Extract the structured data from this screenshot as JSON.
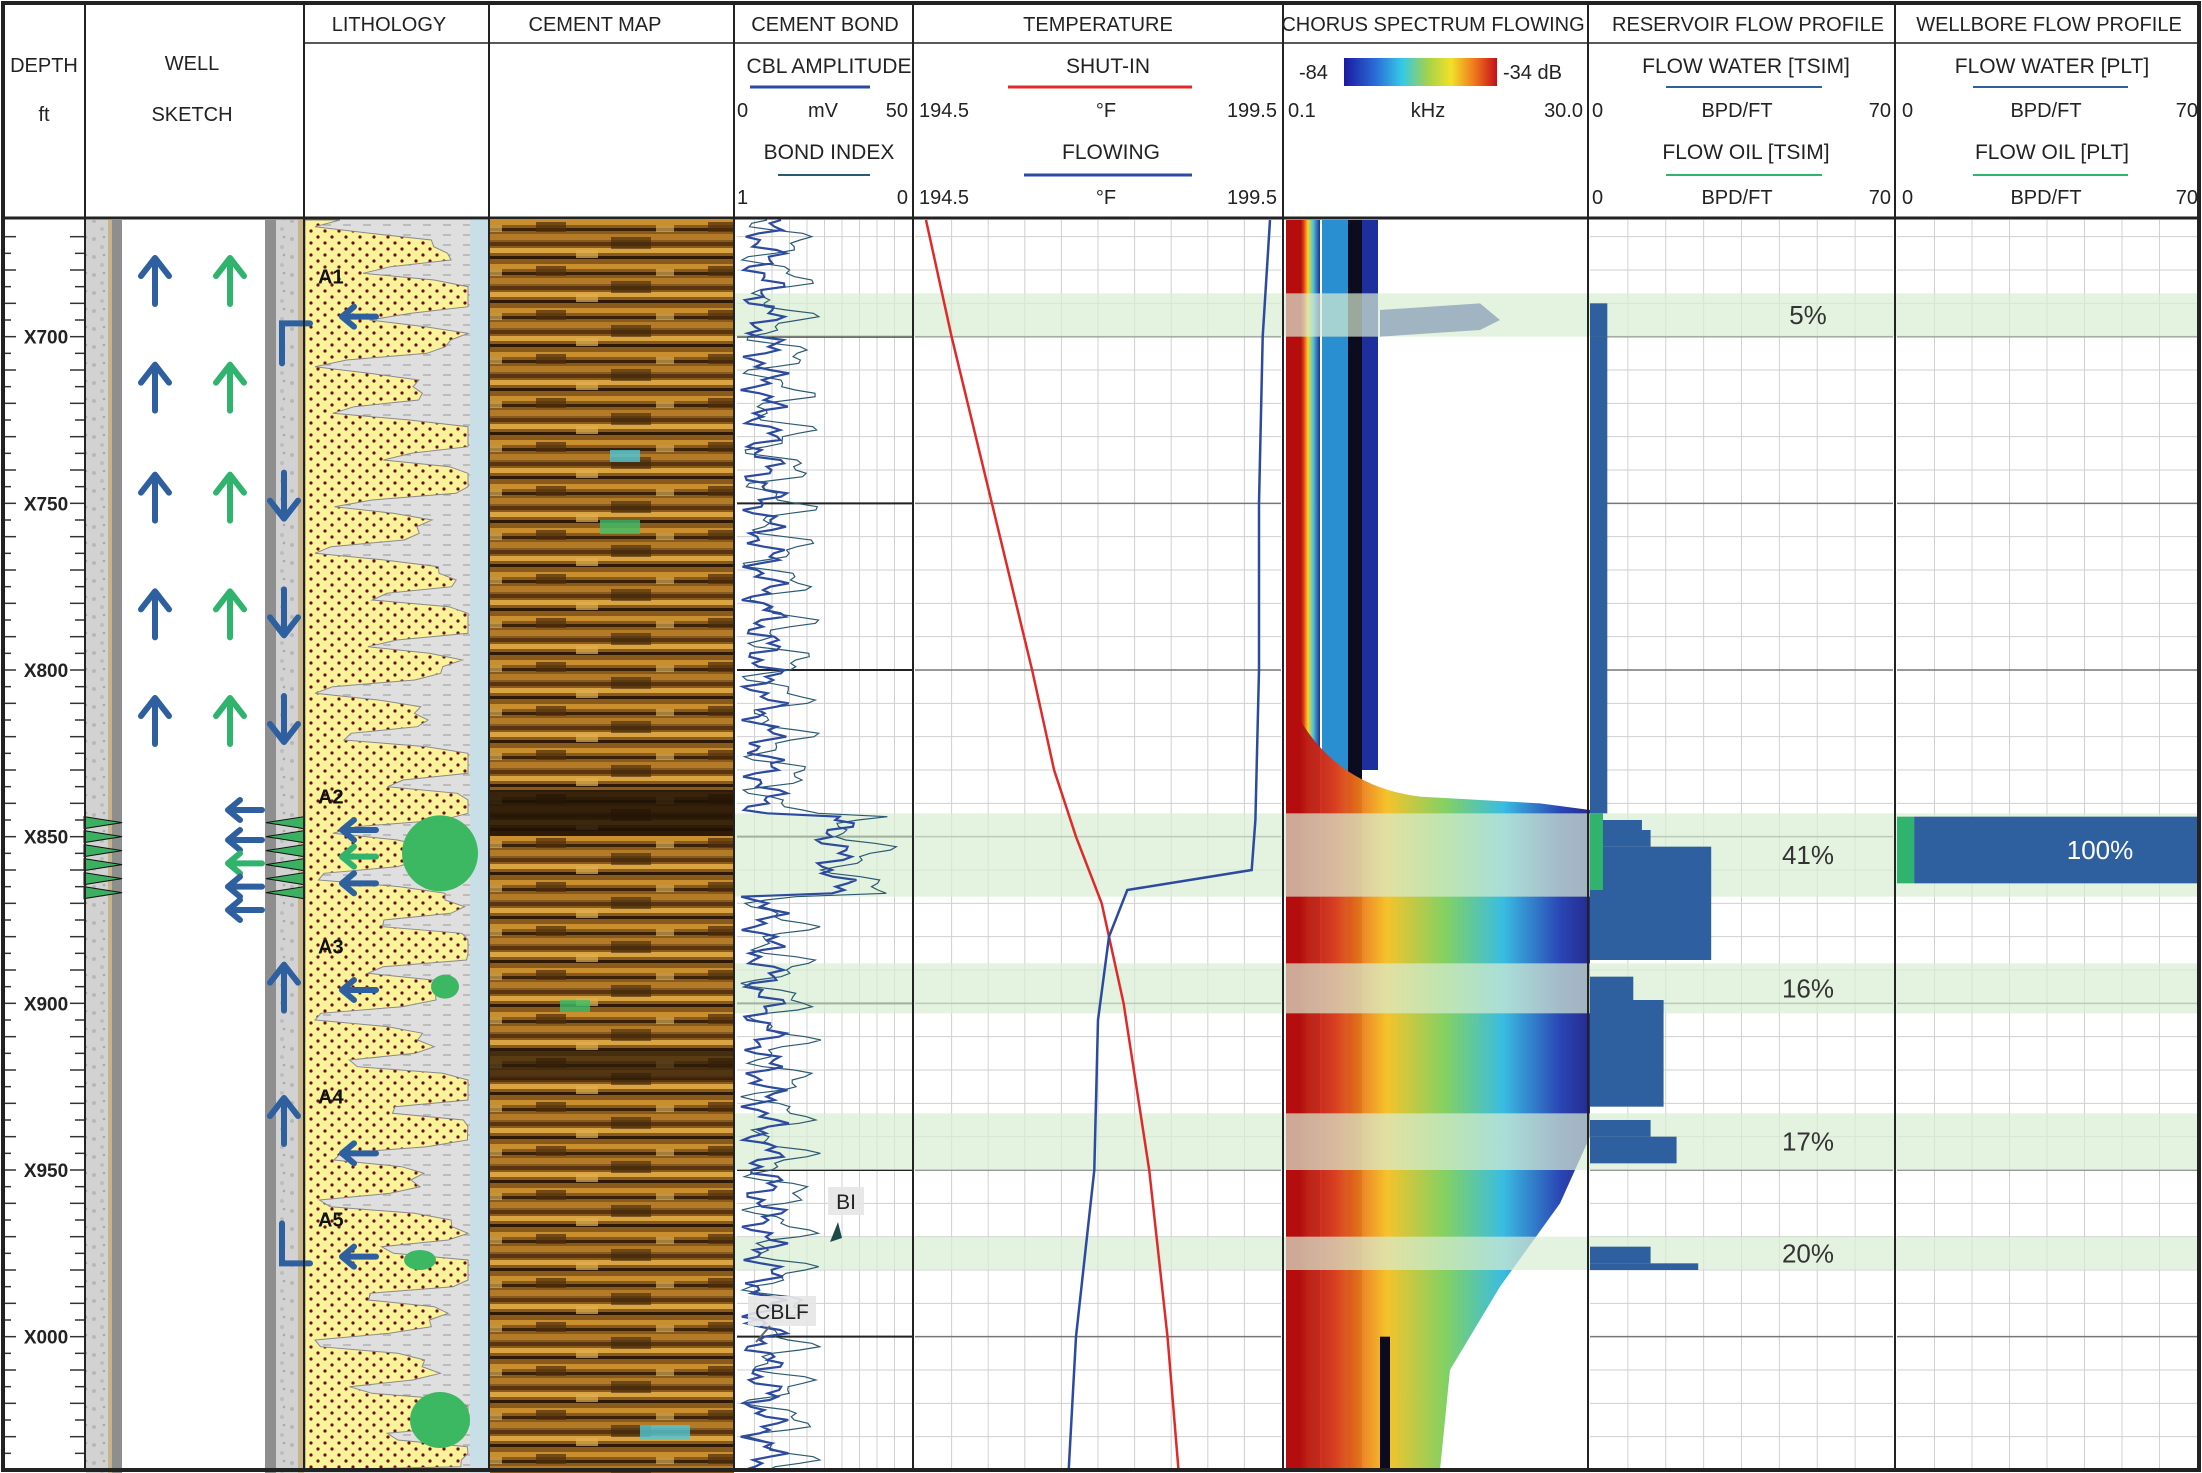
{
  "header": {
    "depth": {
      "line1": "DEPTH",
      "line2": "ft"
    },
    "well_sketch": {
      "line1": "WELL",
      "line2": "SKETCH"
    },
    "lithology": "LITHOLOGY",
    "cement_map": "CEMENT MAP",
    "cement_bond": {
      "title": "CEMENT BOND",
      "cbl_label": "CBL AMPLITUDE",
      "cbl_min": "0",
      "cbl_unit": "mV",
      "cbl_max": "50",
      "bi_label": "BOND INDEX",
      "bi_min": "1",
      "bi_max": "0"
    },
    "temperature": {
      "title": "TEMPERATURE",
      "shutin_label": "SHUT-IN",
      "shutin_min": "194.5",
      "shutin_unit": "°F",
      "shutin_max": "199.5",
      "flowing_label": "FLOWING",
      "flowing_min": "194.5",
      "flowing_unit": "°F",
      "flowing_max": "199.5"
    },
    "spectrum": {
      "title": "CHORUS SPECTRUM FLOWING",
      "db_min": "-84",
      "db_max": "-34 dB",
      "f_min": "0.1",
      "f_unit": "kHz",
      "f_max": "30.0"
    },
    "reservoir": {
      "title": "RESERVOIR FLOW PROFILE",
      "water_label": "FLOW WATER [TSIM]",
      "water_min": "0",
      "water_unit": "BPD/FT",
      "water_max": "70",
      "oil_label": "FLOW OIL [TSIM]",
      "oil_min": "0",
      "oil_unit": "BPD/FT",
      "oil_max": "70"
    },
    "wellbore": {
      "title": "WELLBORE FLOW PROFILE",
      "water_label": "FLOW WATER [PLT]",
      "water_min": "0",
      "water_unit": "BPD/FT",
      "water_max": "70",
      "oil_label": "FLOW OIL [PLT]",
      "oil_min": "0",
      "oil_unit": "BPD/FT",
      "oil_max": "70"
    }
  },
  "colors": {
    "water": "#2e5f9e",
    "oil": "#2fb36d",
    "shutin": "#e02a2a",
    "flowing": "#2b4aa0",
    "zone_band": "#d9ecd3",
    "sand": "#fbf39a",
    "shale": "#dcdcdc",
    "cement_light": "#c9dfe8",
    "map_dark": "#2a1a08",
    "map_light": "#d9a441"
  },
  "icons": [
    "arrow-up-icon",
    "arrow-down-icon",
    "arrow-left-icon",
    "perforation-icon"
  ],
  "chart_data": {
    "type": "well-log",
    "depth_axis": {
      "labels": [
        "X700",
        "X750",
        "X800",
        "X850",
        "X900",
        "X950",
        "X000"
      ],
      "label_depths": [
        700,
        750,
        800,
        850,
        900,
        950,
        1000
      ],
      "range": [
        665,
        1040
      ],
      "minor_tick_ft": 10
    },
    "zones": [
      {
        "name": "A1",
        "top": 687,
        "bottom": 700
      },
      {
        "name": "A2",
        "top": 843,
        "bottom": 868
      },
      {
        "name": "A3",
        "top": 888,
        "bottom": 903
      },
      {
        "name": "A4",
        "top": 933,
        "bottom": 950
      },
      {
        "name": "A5",
        "top": 970,
        "bottom": 980
      }
    ],
    "annotations": {
      "bi": "BI",
      "cblf": "CBLF"
    },
    "temperature": {
      "shutin_depth": [
        665,
        700,
        750,
        800,
        830,
        850,
        870,
        900,
        950,
        1000,
        1040
      ],
      "shutin_F": [
        194.65,
        195.0,
        195.55,
        196.1,
        196.4,
        196.7,
        197.05,
        197.35,
        197.7,
        197.95,
        198.1
      ],
      "flowing_depth": [
        665,
        700,
        750,
        800,
        845,
        860,
        866,
        880,
        905,
        950,
        1000,
        1040
      ],
      "flowing_F": [
        199.35,
        199.25,
        199.2,
        199.2,
        199.15,
        199.1,
        197.4,
        197.15,
        197.0,
        196.95,
        196.7,
        196.6
      ]
    },
    "reservoir_flow_water": {
      "depth": [
        690,
        700,
        843,
        845,
        848,
        853,
        866,
        887,
        892,
        896,
        899,
        902,
        931,
        935,
        940,
        944,
        948,
        969,
        973,
        978,
        980
      ],
      "bpd_ft": [
        4,
        4,
        0,
        12,
        14,
        28,
        28,
        0,
        10,
        10,
        17,
        17,
        0,
        14,
        20,
        20,
        0,
        0,
        14,
        25,
        0
      ]
    },
    "reservoir_flow_oil": {
      "depth": [
        843,
        866
      ],
      "bpd_ft": [
        3,
        3
      ]
    },
    "reservoir_shares": [
      {
        "zone": "A1",
        "percent": "5%"
      },
      {
        "zone": "A2",
        "percent": "41%"
      },
      {
        "zone": "A3",
        "percent": "16%"
      },
      {
        "zone": "A4",
        "percent": "17%"
      },
      {
        "zone": "A5",
        "percent": "20%"
      }
    ],
    "wellbore_flow": [
      {
        "zone": "A2",
        "top": 844,
        "bottom": 864,
        "water_bpd_ft": 66,
        "oil_bpd_ft": 4,
        "percent": "100%"
      }
    ]
  }
}
